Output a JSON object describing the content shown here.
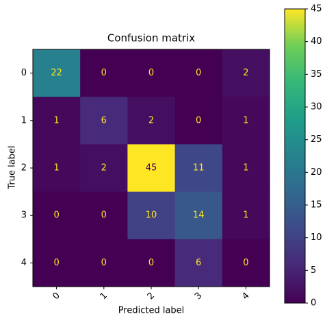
{
  "chart_data": {
    "type": "heatmap",
    "title": "Confusion matrix",
    "x_label": "Predicted label",
    "y_label": "True label",
    "x_categories": [
      "0",
      "1",
      "2",
      "3",
      "4"
    ],
    "y_categories": [
      "0",
      "1",
      "2",
      "3",
      "4"
    ],
    "values": [
      [
        22,
        0,
        0,
        0,
        2
      ],
      [
        1,
        6,
        2,
        0,
        1
      ],
      [
        1,
        2,
        45,
        11,
        1
      ],
      [
        0,
        0,
        10,
        14,
        1
      ],
      [
        0,
        0,
        0,
        6,
        0
      ]
    ],
    "colormap": "viridis",
    "clim": [
      0,
      45
    ],
    "colorbar_ticks": [
      0,
      5,
      10,
      15,
      20,
      25,
      30,
      35,
      40,
      45
    ]
  }
}
